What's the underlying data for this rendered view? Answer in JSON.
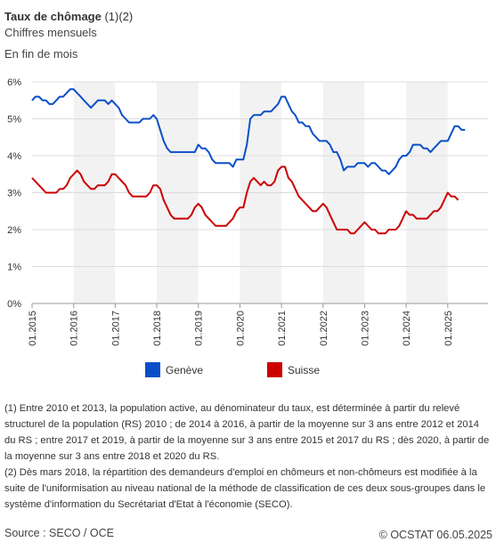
{
  "header": {
    "title": "Taux de chômage",
    "title_suffix": " (1)(2)",
    "subtitle": "Chiffres mensuels",
    "unit_note": "En fin de mois"
  },
  "chart_data": {
    "type": "line",
    "ylim": [
      0,
      6
    ],
    "y_ticks": [
      "0%",
      "1%",
      "2%",
      "3%",
      "4%",
      "5%",
      "6%"
    ],
    "x_ticks": [
      "01.2015",
      "01.2016",
      "01.2017",
      "01.2018",
      "01.2019",
      "01.2020",
      "01.2021",
      "01.2022",
      "01.2023",
      "01.2024",
      "01.2025"
    ],
    "grid": "alternating vertical bands per year, horizontal gridlines",
    "legend_position": "bottom",
    "series": [
      {
        "name": "Genève",
        "color": "#0a4fc9",
        "start": "01.2015",
        "values": [
          5.5,
          5.6,
          5.6,
          5.5,
          5.5,
          5.4,
          5.4,
          5.5,
          5.6,
          5.6,
          5.7,
          5.8,
          5.8,
          5.7,
          5.6,
          5.5,
          5.4,
          5.3,
          5.4,
          5.5,
          5.5,
          5.5,
          5.4,
          5.5,
          5.4,
          5.3,
          5.1,
          5.0,
          4.9,
          4.9,
          4.9,
          4.9,
          5.0,
          5.0,
          5.0,
          5.1,
          5.0,
          4.7,
          4.4,
          4.2,
          4.1,
          4.1,
          4.1,
          4.1,
          4.1,
          4.1,
          4.1,
          4.1,
          4.3,
          4.2,
          4.2,
          4.1,
          3.9,
          3.8,
          3.8,
          3.8,
          3.8,
          3.8,
          3.7,
          3.9,
          3.9,
          3.9,
          4.3,
          5.0,
          5.1,
          5.1,
          5.1,
          5.2,
          5.2,
          5.2,
          5.3,
          5.4,
          5.6,
          5.6,
          5.4,
          5.2,
          5.1,
          4.9,
          4.9,
          4.8,
          4.8,
          4.6,
          4.5,
          4.4,
          4.4,
          4.4,
          4.3,
          4.1,
          4.1,
          3.9,
          3.6,
          3.7,
          3.7,
          3.7,
          3.8,
          3.8,
          3.8,
          3.7,
          3.8,
          3.8,
          3.7,
          3.6,
          3.6,
          3.5,
          3.6,
          3.7,
          3.9,
          4.0,
          4.0,
          4.1,
          4.3,
          4.3,
          4.3,
          4.2,
          4.2,
          4.1,
          4.2,
          4.3,
          4.4,
          4.4,
          4.4,
          4.6,
          4.8,
          4.8,
          4.7,
          4.7
        ]
      },
      {
        "name": "Suisse",
        "color": "#cc0000",
        "start": "01.2015",
        "values": [
          3.4,
          3.3,
          3.2,
          3.1,
          3.0,
          3.0,
          3.0,
          3.0,
          3.1,
          3.1,
          3.2,
          3.4,
          3.5,
          3.6,
          3.5,
          3.3,
          3.2,
          3.1,
          3.1,
          3.2,
          3.2,
          3.2,
          3.3,
          3.5,
          3.5,
          3.4,
          3.3,
          3.2,
          3.0,
          2.9,
          2.9,
          2.9,
          2.9,
          2.9,
          3.0,
          3.2,
          3.2,
          3.1,
          2.8,
          2.6,
          2.4,
          2.3,
          2.3,
          2.3,
          2.3,
          2.3,
          2.4,
          2.6,
          2.7,
          2.6,
          2.4,
          2.3,
          2.2,
          2.1,
          2.1,
          2.1,
          2.1,
          2.2,
          2.3,
          2.5,
          2.6,
          2.6,
          3.0,
          3.3,
          3.4,
          3.3,
          3.2,
          3.3,
          3.2,
          3.2,
          3.3,
          3.6,
          3.7,
          3.7,
          3.4,
          3.3,
          3.1,
          2.9,
          2.8,
          2.7,
          2.6,
          2.5,
          2.5,
          2.6,
          2.7,
          2.6,
          2.4,
          2.2,
          2.0,
          2.0,
          2.0,
          2.0,
          1.9,
          1.9,
          2.0,
          2.1,
          2.2,
          2.1,
          2.0,
          2.0,
          1.9,
          1.9,
          1.9,
          2.0,
          2.0,
          2.0,
          2.1,
          2.3,
          2.5,
          2.4,
          2.4,
          2.3,
          2.3,
          2.3,
          2.3,
          2.4,
          2.5,
          2.5,
          2.6,
          2.8,
          3.0,
          2.9,
          2.9,
          2.8
        ]
      }
    ]
  },
  "legend": [
    {
      "label": "Genève",
      "color": "#0a4fc9"
    },
    {
      "label": "Suisse",
      "color": "#cc0000"
    }
  ],
  "footnotes": {
    "note1": "(1) Entre 2010 et 2013, la population active, au dénominateur du taux, est déterminée à partir du relevé structurel de la population (RS) 2010 ; de 2014 à 2016, à partir de la moyenne sur 3 ans entre 2012 et 2014 du RS ; entre 2017 et 2019, à partir de la moyenne sur 3 ans entre 2015 et 2017 du RS ; dès 2020, à partir de la moyenne sur 3 ans entre 2018 et 2020 du RS.",
    "note2": "(2) Dès mars 2018, la répartition des demandeurs d'emploi en chômeurs et non-chômeurs est modifiée à la suite de l'uniformisation au niveau national de la méthode de classification de ces deux sous-groupes dans le système d'information du Secrétariat d'Etat à l'économie (SECO)."
  },
  "footer": {
    "source": "Source : SECO / OCE",
    "copyright": "© OCSTAT 06.05.2025"
  }
}
